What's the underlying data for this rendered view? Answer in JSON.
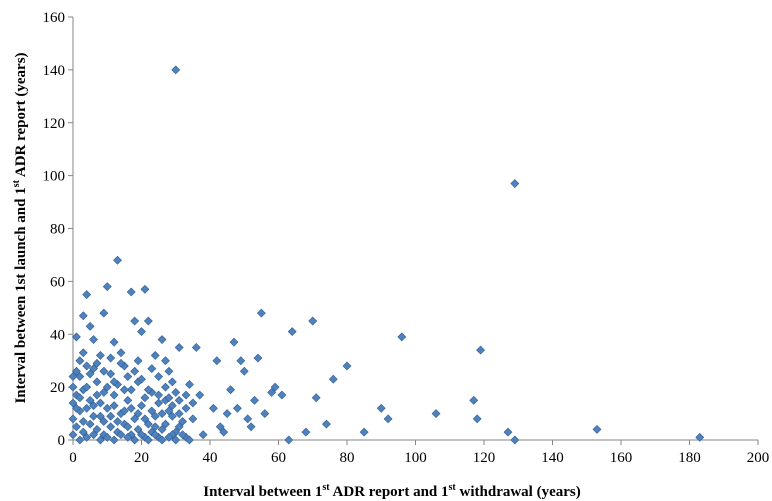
{
  "chart_data": {
    "type": "scatter",
    "xlabel": {
      "pre": "Interval between 1",
      "sup1": "st",
      "mid": " ADR report and 1",
      "sup2": "st",
      "post": " withdrawal (years)"
    },
    "ylabel": {
      "pre": "Interval between 1st launch and 1",
      "sup": "st",
      "post": " ADR report (years)"
    },
    "xlim": [
      0,
      200
    ],
    "ylim": [
      0,
      160
    ],
    "x_ticks": [
      0,
      20,
      40,
      60,
      80,
      100,
      120,
      140,
      160,
      180,
      200
    ],
    "y_ticks": [
      0,
      20,
      40,
      60,
      80,
      100,
      120,
      140,
      160
    ],
    "grid": false,
    "legend": "none",
    "marker_color": "#4F81BD",
    "marker_edge_color": "#2F5F96",
    "points": [
      [
        30,
        140
      ],
      [
        129,
        97
      ],
      [
        13,
        68
      ],
      [
        21,
        57
      ],
      [
        4,
        55
      ],
      [
        17,
        56
      ],
      [
        10,
        58
      ],
      [
        55,
        48
      ],
      [
        70,
        45
      ],
      [
        96,
        39
      ],
      [
        119,
        34
      ],
      [
        64,
        41
      ],
      [
        3,
        47
      ],
      [
        5,
        43
      ],
      [
        9,
        48
      ],
      [
        18,
        45
      ],
      [
        22,
        45
      ],
      [
        1,
        39
      ],
      [
        6,
        38
      ],
      [
        12,
        37
      ],
      [
        20,
        41
      ],
      [
        26,
        38
      ],
      [
        47,
        37
      ],
      [
        42,
        30
      ],
      [
        49,
        30
      ],
      [
        54,
        31
      ],
      [
        59,
        20
      ],
      [
        61,
        17
      ],
      [
        71,
        16
      ],
      [
        76,
        23
      ],
      [
        80,
        28
      ],
      [
        90,
        12
      ],
      [
        92,
        8
      ],
      [
        106,
        10
      ],
      [
        117,
        15
      ],
      [
        118,
        8
      ],
      [
        127,
        3
      ],
      [
        129,
        0
      ],
      [
        153,
        4
      ],
      [
        183,
        1
      ],
      [
        63,
        0
      ],
      [
        68,
        3
      ],
      [
        74,
        6
      ],
      [
        85,
        3
      ],
      [
        53,
        15
      ],
      [
        51,
        8
      ],
      [
        45,
        10
      ],
      [
        41,
        12
      ],
      [
        43,
        5
      ],
      [
        38,
        2
      ],
      [
        36,
        35
      ],
      [
        31,
        35
      ],
      [
        34,
        21
      ],
      [
        28,
        26
      ],
      [
        24,
        32
      ],
      [
        14,
        33
      ],
      [
        8,
        32
      ],
      [
        3,
        33
      ],
      [
        4,
        28
      ],
      [
        2,
        24
      ],
      [
        7,
        22
      ],
      [
        11,
        25
      ],
      [
        15,
        28
      ],
      [
        19,
        30
      ],
      [
        23,
        27
      ],
      [
        27,
        20
      ],
      [
        30,
        18
      ],
      [
        33,
        12
      ],
      [
        29,
        9
      ],
      [
        25,
        14
      ],
      [
        21,
        16
      ],
      [
        17,
        19
      ],
      [
        13,
        21
      ],
      [
        9,
        18
      ],
      [
        5,
        15
      ],
      [
        1,
        17
      ],
      [
        2,
        11
      ],
      [
        6,
        9
      ],
      [
        10,
        12
      ],
      [
        14,
        10
      ],
      [
        18,
        8
      ],
      [
        22,
        6
      ],
      [
        26,
        4
      ],
      [
        30,
        3
      ],
      [
        32,
        7
      ],
      [
        28,
        11
      ],
      [
        24,
        9
      ],
      [
        20,
        13
      ],
      [
        16,
        15
      ],
      [
        12,
        17
      ],
      [
        8,
        14
      ],
      [
        4,
        12
      ],
      [
        0,
        8
      ],
      [
        1,
        5
      ],
      [
        3,
        3
      ],
      [
        5,
        6
      ],
      [
        7,
        4
      ],
      [
        9,
        2
      ],
      [
        11,
        5
      ],
      [
        13,
        3
      ],
      [
        15,
        6
      ],
      [
        17,
        2
      ],
      [
        19,
        4
      ],
      [
        21,
        1
      ],
      [
        23,
        3
      ],
      [
        25,
        1
      ],
      [
        27,
        6
      ],
      [
        29,
        2
      ],
      [
        31,
        5
      ],
      [
        33,
        1
      ],
      [
        35,
        8
      ],
      [
        0,
        2
      ],
      [
        2,
        0
      ],
      [
        4,
        1
      ],
      [
        6,
        2
      ],
      [
        8,
        0
      ],
      [
        10,
        1
      ],
      [
        12,
        0
      ],
      [
        14,
        2
      ],
      [
        16,
        1
      ],
      [
        18,
        0
      ],
      [
        20,
        2
      ],
      [
        22,
        0
      ],
      [
        24,
        2
      ],
      [
        26,
        0
      ],
      [
        28,
        1
      ],
      [
        30,
        0
      ],
      [
        32,
        2
      ],
      [
        34,
        0
      ],
      [
        0,
        14
      ],
      [
        0,
        20
      ],
      [
        1,
        26
      ],
      [
        2,
        30
      ],
      [
        3,
        19
      ],
      [
        6,
        27
      ],
      [
        7,
        17
      ],
      [
        9,
        7
      ],
      [
        11,
        9
      ],
      [
        12,
        13
      ],
      [
        15,
        11
      ],
      [
        16,
        24
      ],
      [
        19,
        22
      ],
      [
        23,
        18
      ],
      [
        25,
        24
      ],
      [
        27,
        15
      ],
      [
        29,
        13
      ],
      [
        31,
        10
      ],
      [
        33,
        17
      ],
      [
        35,
        14
      ],
      [
        37,
        17
      ],
      [
        44,
        3
      ],
      [
        46,
        19
      ],
      [
        48,
        12
      ],
      [
        50,
        26
      ],
      [
        52,
        5
      ],
      [
        56,
        10
      ],
      [
        58,
        18
      ],
      [
        0,
        24
      ],
      [
        1,
        12
      ],
      [
        2,
        16
      ],
      [
        3,
        7
      ],
      [
        4,
        20
      ],
      [
        5,
        25
      ],
      [
        6,
        13
      ],
      [
        7,
        29
      ],
      [
        8,
        9
      ],
      [
        9,
        26
      ],
      [
        10,
        20
      ],
      [
        11,
        31
      ],
      [
        12,
        22
      ],
      [
        13,
        7
      ],
      [
        14,
        29
      ],
      [
        15,
        19
      ],
      [
        16,
        5
      ],
      [
        17,
        12
      ],
      [
        18,
        26
      ],
      [
        19,
        10
      ],
      [
        20,
        23
      ],
      [
        21,
        8
      ],
      [
        22,
        19
      ],
      [
        23,
        11
      ],
      [
        24,
        5
      ],
      [
        25,
        17
      ],
      [
        26,
        10
      ],
      [
        27,
        30
      ],
      [
        28,
        16
      ],
      [
        29,
        22
      ],
      [
        31,
        15
      ]
    ]
  }
}
